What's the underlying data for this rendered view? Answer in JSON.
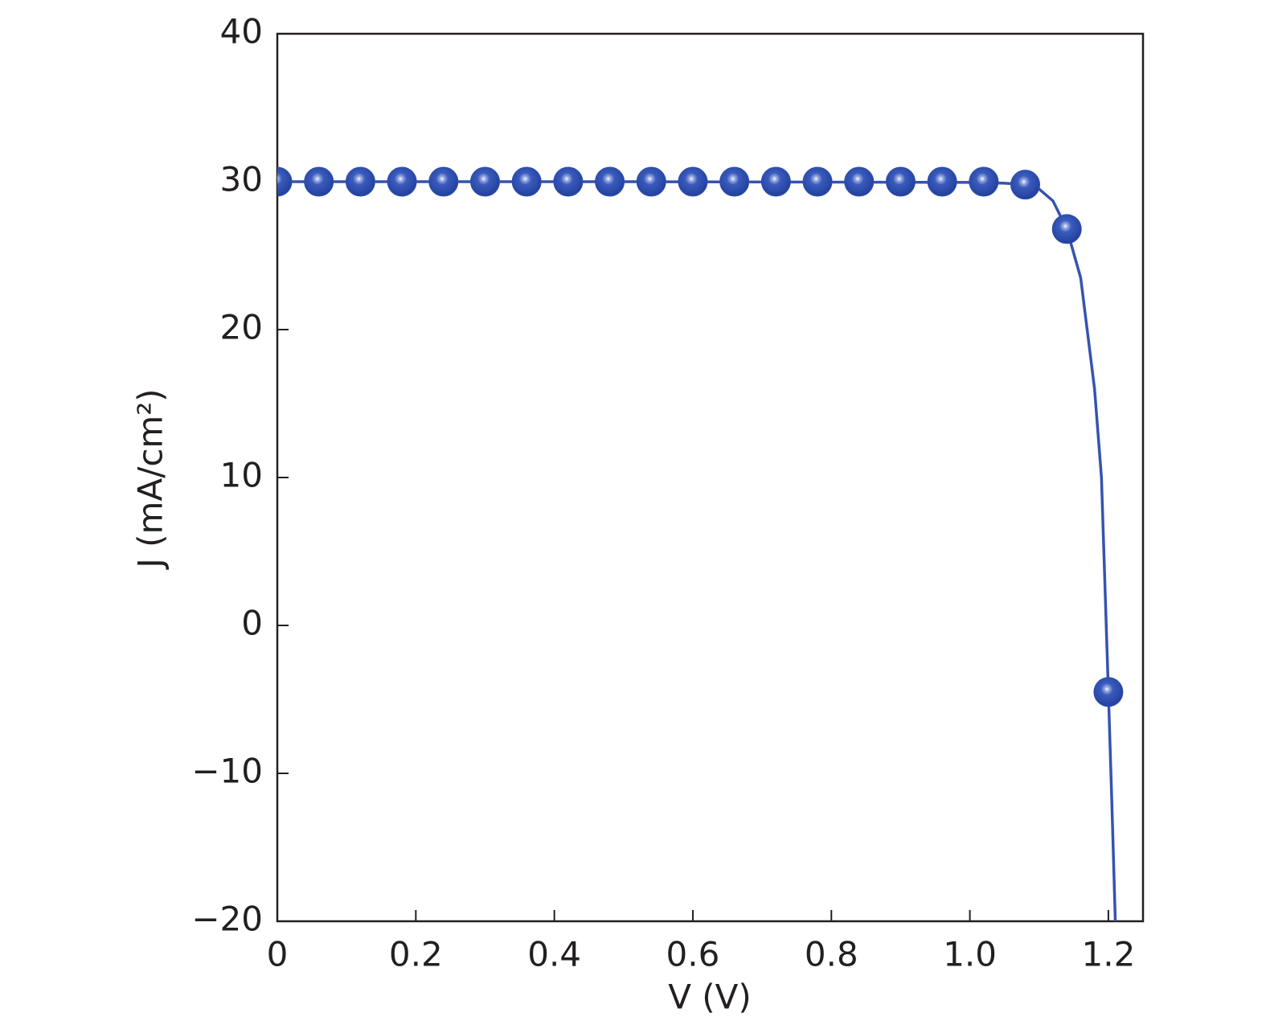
{
  "chart_data": {
    "type": "scatter",
    "xlabel": "V (V)",
    "ylabel": "J (mA/cm²)",
    "xlim": [
      0,
      1.25
    ],
    "ylim": [
      -20,
      40
    ],
    "xticks": [
      0,
      0.2,
      0.4,
      0.6,
      0.8,
      {
        "value": 1,
        "label": "1.0"
      },
      1.2
    ],
    "yticks": [
      {
        "value": -20,
        "label": "−20"
      },
      {
        "value": -10,
        "label": "−10"
      },
      0,
      10,
      20,
      30,
      40
    ],
    "series": [
      {
        "type": "scatter",
        "color": "#2f4fae",
        "x": [
          0,
          0.06,
          0.12,
          0.18,
          0.24,
          0.3,
          0.36,
          0.42,
          0.48,
          0.54,
          0.6,
          0.66,
          0.72,
          0.78,
          0.84,
          0.9,
          0.96,
          1.02,
          1.08,
          1.14,
          1.2
        ],
        "values": [
          30,
          30,
          30,
          30,
          30,
          30,
          30,
          30,
          30,
          30,
          30,
          30,
          30,
          30,
          30,
          30,
          30,
          30,
          29.8,
          26.8,
          -4.5
        ]
      },
      {
        "type": "line",
        "color": "#3553b0",
        "x": [
          0,
          0.5,
          1.0,
          1.05,
          1.08,
          1.1,
          1.12,
          1.14,
          1.16,
          1.18,
          1.19,
          1.2,
          1.205,
          1.21
        ],
        "values": [
          30,
          30,
          29.95,
          29.9,
          29.8,
          29.5,
          28.7,
          26.8,
          23.5,
          16,
          10,
          -4.5,
          -12,
          -20
        ]
      }
    ]
  }
}
